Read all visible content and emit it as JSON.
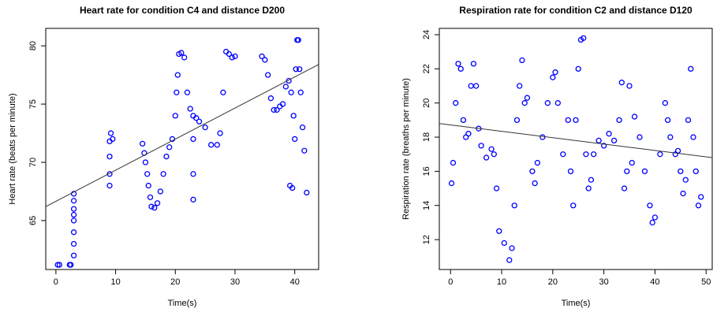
{
  "chart_data": [
    {
      "type": "scatter",
      "title": "Heart rate for condition C4 and distance D200",
      "xlabel": "Time(s)",
      "ylabel": "Heart rate (beats per minute)",
      "color": "#0000ff",
      "x": [
        0.3,
        0.6,
        2.3,
        2.5,
        3,
        3,
        3,
        3,
        3,
        3,
        3,
        3,
        9,
        9,
        9,
        9,
        9.2,
        9.5,
        14.5,
        14.8,
        15,
        15.3,
        15.5,
        15.8,
        16,
        16.5,
        17,
        17.5,
        18,
        18.5,
        19,
        19.5,
        20,
        20.2,
        20.4,
        20.6,
        21,
        21.5,
        22,
        22.5,
        23,
        23,
        23,
        23,
        23.5,
        24,
        25,
        26,
        27,
        27.5,
        28,
        28.5,
        29,
        29.5,
        30,
        34.5,
        35,
        35.5,
        36,
        36.5,
        37,
        37.5,
        38,
        38.5,
        39,
        39.2,
        39.4,
        39.6,
        39.8,
        40,
        40.2,
        40.4,
        40.6,
        40.8,
        41,
        41.3,
        41.6,
        42
      ],
      "values": [
        61.2,
        61.2,
        61.2,
        61.2,
        62,
        63,
        64,
        65,
        65.5,
        66,
        66.7,
        67.3,
        68,
        69,
        70.5,
        71.8,
        72.5,
        72,
        71.6,
        70.8,
        70,
        69,
        68,
        67,
        66.2,
        66.1,
        66.5,
        67.5,
        69,
        70.5,
        71.3,
        72,
        74,
        76,
        77.5,
        79.3,
        79.4,
        79,
        76,
        74.6,
        74,
        72,
        69,
        66.8,
        73.8,
        73.5,
        73,
        71.5,
        71.5,
        72.5,
        76,
        79.5,
        79.3,
        79,
        79.1,
        79.1,
        78.8,
        77.5,
        75.5,
        74.5,
        74.5,
        74.8,
        75,
        76.5,
        77,
        68,
        76,
        67.8,
        74,
        72,
        78,
        80.5,
        80.5,
        78,
        76,
        73,
        71,
        67.4
      ],
      "trend": {
        "x": [
          -1.7,
          44
        ],
        "y": [
          66.2,
          78.4
        ]
      },
      "xlim": [
        -1.7,
        44
      ],
      "ylim": [
        60.8,
        81.5
      ],
      "xticks": [
        0,
        10,
        20,
        30,
        40
      ],
      "yticks": [
        65,
        70,
        75,
        80
      ]
    },
    {
      "type": "scatter",
      "title": "Respiration rate for condition C2 and distance D120",
      "xlabel": "Time(s)",
      "ylabel": "Respiration rate (breaths per minute)",
      "color": "#0000ff",
      "x": [
        0.2,
        0.5,
        1,
        1.5,
        2,
        2.5,
        3,
        3.5,
        4,
        4.5,
        5,
        5.5,
        6,
        7,
        8,
        8.5,
        9,
        9.5,
        10.5,
        11.5,
        12,
        12.5,
        13,
        13.5,
        14,
        14.5,
        15,
        16,
        16.5,
        17,
        18,
        19,
        20,
        20.5,
        21,
        22,
        23,
        23.5,
        24,
        24.5,
        25,
        25.5,
        26,
        26.5,
        27,
        27.5,
        28,
        29,
        30,
        31,
        32,
        33,
        33.5,
        34,
        34.5,
        35,
        35.5,
        36,
        37,
        38,
        39,
        39.5,
        40,
        41,
        42,
        42.5,
        43,
        44,
        44.5,
        45,
        45.5,
        46,
        46.5,
        47,
        47.5,
        48,
        48.5,
        49
      ],
      "values": [
        15.3,
        16.5,
        20,
        22.3,
        22,
        19,
        18,
        18.2,
        21,
        22.3,
        21,
        18.5,
        17.5,
        16.8,
        17.3,
        17,
        15,
        12.5,
        11.8,
        10.8,
        11.5,
        14,
        19,
        21,
        22.5,
        20,
        20.3,
        16,
        15.3,
        16.5,
        18,
        20,
        21.5,
        21.8,
        20,
        17,
        19,
        16,
        14,
        19,
        22,
        23.7,
        23.8,
        17,
        15,
        15.5,
        17,
        17.8,
        17.5,
        18.2,
        17.8,
        19,
        21.2,
        15,
        16,
        21,
        16.5,
        19.2,
        18,
        16,
        14,
        13,
        13.3,
        17,
        20,
        19,
        18,
        17,
        17.2,
        16,
        14.7,
        15.5,
        19,
        22,
        18,
        16,
        14,
        14.5
      ],
      "trend": {
        "x": [
          -2.2,
          51.2
        ],
        "y": [
          18.8,
          16.8
        ]
      },
      "xlim": [
        -2.2,
        51.2
      ],
      "ylim": [
        10.25,
        24.37
      ],
      "xticks": [
        0,
        10,
        20,
        30,
        40,
        50
      ],
      "yticks": [
        12,
        14,
        16,
        18,
        20,
        22,
        24
      ]
    }
  ]
}
